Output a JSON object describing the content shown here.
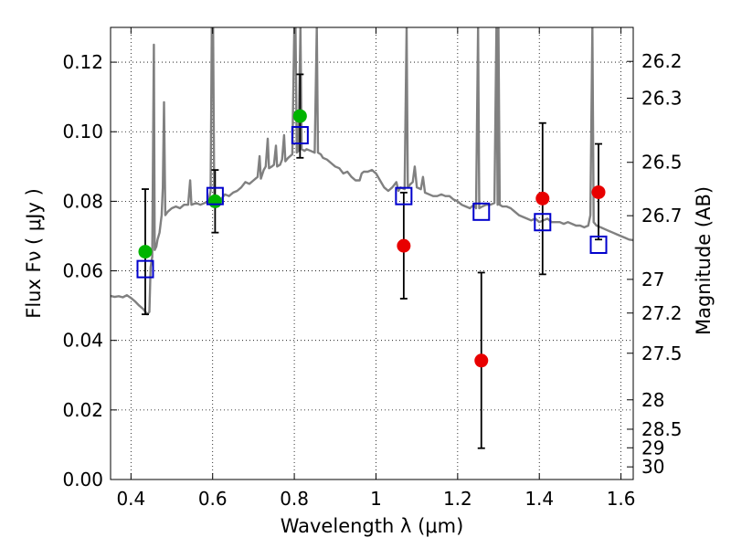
{
  "chart_data": {
    "type": "scatter",
    "title": "",
    "xlabel": "Wavelength  λ (μm)",
    "ylabel": "Flux  Fν  ( μJy )",
    "y2label": "Magnitude (AB)",
    "xlim": [
      0.35,
      1.63
    ],
    "ylim": [
      0.0,
      0.13
    ],
    "grid": true,
    "x_ticks": [
      0.4,
      0.6,
      0.8,
      1.0,
      1.2,
      1.4,
      1.6
    ],
    "x_tick_labels": [
      "0.4",
      "0.6",
      "0.8",
      "1",
      "1.2",
      "1.4",
      "1.6"
    ],
    "y_ticks": [
      0.0,
      0.02,
      0.04,
      0.06,
      0.08,
      0.1,
      0.12
    ],
    "y_tick_labels": [
      "0.00",
      "0.02",
      "0.04",
      "0.06",
      "0.08",
      "0.10",
      "0.12"
    ],
    "y2_tick_labels": [
      "26.2",
      "26.3",
      "26.5",
      "26.7",
      "27",
      "27.2",
      "27.5",
      "28",
      "28.5",
      "29",
      "30"
    ],
    "colors": {
      "model": "#808080",
      "green": "#00b400",
      "red": "#e80000",
      "blue": "#0000cc",
      "errorbar": "#000000",
      "grid": "#000000"
    },
    "series": [
      {
        "kind": "errorbar_points",
        "marker": "green-circle",
        "points": [
          {
            "x": 0.435,
            "y": 0.0655,
            "ylo": 0.0475,
            "yhi": 0.0835
          },
          {
            "x": 0.606,
            "y": 0.08,
            "ylo": 0.071,
            "yhi": 0.089
          },
          {
            "x": 0.814,
            "y": 0.1045,
            "ylo": 0.0925,
            "yhi": 0.1165
          }
        ]
      },
      {
        "kind": "errorbar_points",
        "marker": "red-circle",
        "points": [
          {
            "x": 1.068,
            "y": 0.0672,
            "ylo": 0.052,
            "yhi": 0.0825
          },
          {
            "x": 1.258,
            "y": 0.0342,
            "ylo": 0.009,
            "yhi": 0.0595
          },
          {
            "x": 1.408,
            "y": 0.0808,
            "ylo": 0.059,
            "yhi": 0.1025
          },
          {
            "x": 1.545,
            "y": 0.0826,
            "ylo": 0.069,
            "yhi": 0.0965
          }
        ]
      },
      {
        "kind": "points",
        "marker": "blue-open-square",
        "points": [
          {
            "x": 0.435,
            "y": 0.0605
          },
          {
            "x": 0.606,
            "y": 0.0815
          },
          {
            "x": 0.814,
            "y": 0.099
          },
          {
            "x": 1.068,
            "y": 0.0815
          },
          {
            "x": 1.258,
            "y": 0.077
          },
          {
            "x": 1.408,
            "y": 0.074
          },
          {
            "x": 1.545,
            "y": 0.0675
          }
        ]
      },
      {
        "kind": "line",
        "marker": "model-spectrum",
        "points": [
          [
            0.35,
            0.0528
          ],
          [
            0.36,
            0.0525
          ],
          [
            0.37,
            0.0527
          ],
          [
            0.38,
            0.0524
          ],
          [
            0.39,
            0.053
          ],
          [
            0.4,
            0.0522
          ],
          [
            0.41,
            0.0512
          ],
          [
            0.42,
            0.05
          ],
          [
            0.43,
            0.049
          ],
          [
            0.44,
            0.0475
          ],
          [
            0.445,
            0.0482
          ],
          [
            0.448,
            0.061
          ],
          [
            0.452,
            0.064
          ],
          [
            0.456,
            0.125
          ],
          [
            0.458,
            0.066
          ],
          [
            0.462,
            0.067
          ],
          [
            0.465,
            0.069
          ],
          [
            0.47,
            0.071
          ],
          [
            0.475,
            0.076
          ],
          [
            0.478,
            0.084
          ],
          [
            0.481,
            0.1085
          ],
          [
            0.484,
            0.076
          ],
          [
            0.49,
            0.077
          ],
          [
            0.5,
            0.078
          ],
          [
            0.51,
            0.0785
          ],
          [
            0.52,
            0.078
          ],
          [
            0.53,
            0.079
          ],
          [
            0.54,
            0.079
          ],
          [
            0.545,
            0.086
          ],
          [
            0.548,
            0.079
          ],
          [
            0.56,
            0.0795
          ],
          [
            0.57,
            0.079
          ],
          [
            0.58,
            0.0795
          ],
          [
            0.59,
            0.08
          ],
          [
            0.595,
            0.083
          ],
          [
            0.598,
            0.13
          ],
          [
            0.601,
            0.13
          ],
          [
            0.604,
            0.08
          ],
          [
            0.61,
            0.079
          ],
          [
            0.62,
            0.0805
          ],
          [
            0.63,
            0.082
          ],
          [
            0.64,
            0.0815
          ],
          [
            0.65,
            0.0825
          ],
          [
            0.66,
            0.083
          ],
          [
            0.67,
            0.084
          ],
          [
            0.68,
            0.0855
          ],
          [
            0.69,
            0.085
          ],
          [
            0.7,
            0.086
          ],
          [
            0.71,
            0.087
          ],
          [
            0.715,
            0.093
          ],
          [
            0.718,
            0.0865
          ],
          [
            0.725,
            0.089
          ],
          [
            0.73,
            0.09
          ],
          [
            0.735,
            0.098
          ],
          [
            0.738,
            0.0895
          ],
          [
            0.745,
            0.09
          ],
          [
            0.75,
            0.0905
          ],
          [
            0.755,
            0.096
          ],
          [
            0.758,
            0.09
          ],
          [
            0.765,
            0.0905
          ],
          [
            0.77,
            0.092
          ],
          [
            0.775,
            0.099
          ],
          [
            0.778,
            0.0915
          ],
          [
            0.785,
            0.0925
          ],
          [
            0.79,
            0.093
          ],
          [
            0.795,
            0.0935
          ],
          [
            0.8,
            0.13
          ],
          [
            0.803,
            0.13
          ],
          [
            0.806,
            0.094
          ],
          [
            0.81,
            0.0945
          ],
          [
            0.815,
            0.13
          ],
          [
            0.818,
            0.095
          ],
          [
            0.825,
            0.0945
          ],
          [
            0.83,
            0.095
          ],
          [
            0.84,
            0.0945
          ],
          [
            0.85,
            0.094
          ],
          [
            0.855,
            0.13
          ],
          [
            0.858,
            0.094
          ],
          [
            0.865,
            0.0935
          ],
          [
            0.87,
            0.0925
          ],
          [
            0.88,
            0.092
          ],
          [
            0.89,
            0.091
          ],
          [
            0.9,
            0.09
          ],
          [
            0.91,
            0.0895
          ],
          [
            0.92,
            0.088
          ],
          [
            0.93,
            0.0885
          ],
          [
            0.94,
            0.087
          ],
          [
            0.95,
            0.086
          ],
          [
            0.96,
            0.086
          ],
          [
            0.965,
            0.088
          ],
          [
            0.97,
            0.0885
          ],
          [
            0.98,
            0.0885
          ],
          [
            0.99,
            0.089
          ],
          [
            1.0,
            0.088
          ],
          [
            1.01,
            0.086
          ],
          [
            1.02,
            0.084
          ],
          [
            1.03,
            0.083
          ],
          [
            1.04,
            0.084
          ],
          [
            1.05,
            0.0855
          ],
          [
            1.055,
            0.083
          ],
          [
            1.06,
            0.084
          ],
          [
            1.07,
            0.0835
          ],
          [
            1.075,
            0.13
          ],
          [
            1.078,
            0.084
          ],
          [
            1.085,
            0.085
          ],
          [
            1.09,
            0.0855
          ],
          [
            1.095,
            0.09
          ],
          [
            1.1,
            0.084
          ],
          [
            1.11,
            0.0835
          ],
          [
            1.115,
            0.087
          ],
          [
            1.12,
            0.0825
          ],
          [
            1.13,
            0.082
          ],
          [
            1.14,
            0.0815
          ],
          [
            1.15,
            0.0815
          ],
          [
            1.16,
            0.082
          ],
          [
            1.17,
            0.0815
          ],
          [
            1.18,
            0.0815
          ],
          [
            1.19,
            0.0805
          ],
          [
            1.2,
            0.08
          ],
          [
            1.21,
            0.079
          ],
          [
            1.22,
            0.0785
          ],
          [
            1.23,
            0.078
          ],
          [
            1.24,
            0.079
          ],
          [
            1.245,
            0.078
          ],
          [
            1.25,
            0.13
          ],
          [
            1.253,
            0.078
          ],
          [
            1.26,
            0.0785
          ],
          [
            1.27,
            0.079
          ],
          [
            1.28,
            0.079
          ],
          [
            1.29,
            0.0795
          ],
          [
            1.295,
            0.13
          ],
          [
            1.298,
            0.079
          ],
          [
            1.3,
            0.13
          ],
          [
            1.303,
            0.079
          ],
          [
            1.31,
            0.0785
          ],
          [
            1.32,
            0.0785
          ],
          [
            1.33,
            0.078
          ],
          [
            1.34,
            0.077
          ],
          [
            1.35,
            0.076
          ],
          [
            1.36,
            0.0755
          ],
          [
            1.37,
            0.075
          ],
          [
            1.38,
            0.0745
          ],
          [
            1.39,
            0.075
          ],
          [
            1.4,
            0.074
          ],
          [
            1.41,
            0.0745
          ],
          [
            1.42,
            0.075
          ],
          [
            1.43,
            0.074
          ],
          [
            1.44,
            0.074
          ],
          [
            1.45,
            0.074
          ],
          [
            1.46,
            0.0735
          ],
          [
            1.47,
            0.074
          ],
          [
            1.48,
            0.0735
          ],
          [
            1.49,
            0.073
          ],
          [
            1.5,
            0.073
          ],
          [
            1.51,
            0.0725
          ],
          [
            1.52,
            0.073
          ],
          [
            1.525,
            0.076
          ],
          [
            1.53,
            0.13
          ],
          [
            1.533,
            0.074
          ],
          [
            1.54,
            0.073
          ],
          [
            1.55,
            0.0725
          ],
          [
            1.56,
            0.072
          ],
          [
            1.57,
            0.0715
          ],
          [
            1.58,
            0.071
          ],
          [
            1.59,
            0.0705
          ],
          [
            1.6,
            0.07
          ],
          [
            1.61,
            0.0695
          ],
          [
            1.62,
            0.069
          ],
          [
            1.63,
            0.0688
          ]
        ]
      }
    ]
  }
}
